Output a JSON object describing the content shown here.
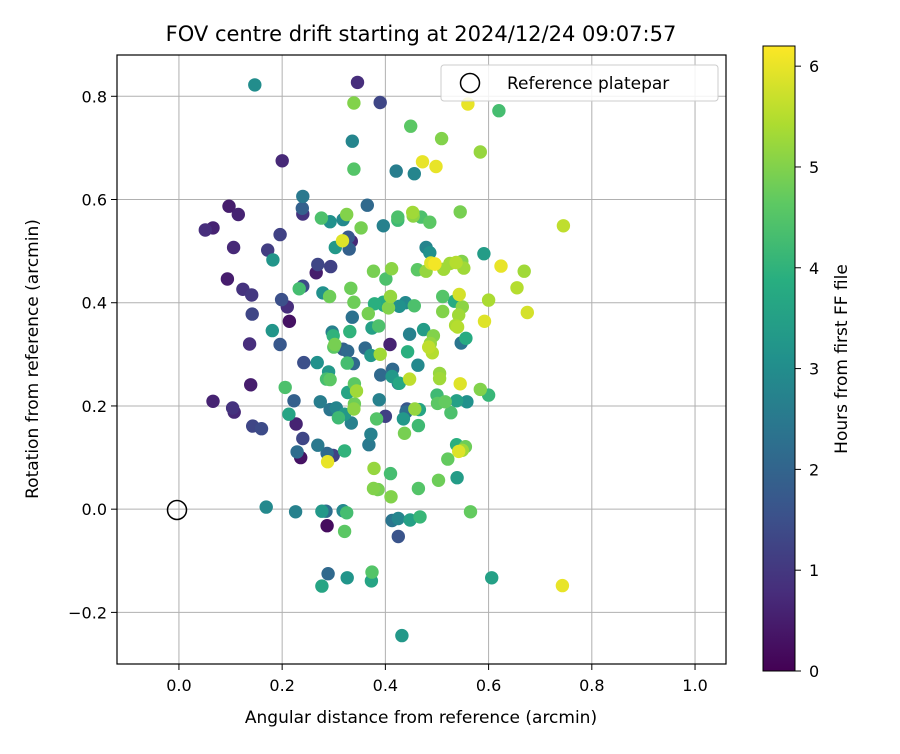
{
  "chart_data": {
    "type": "scatter",
    "title": "FOV centre drift starting at 2024/12/24 09:07:57",
    "xlabel": "Angular distance from reference (arcmin)",
    "ylabel": "Rotation from reference (arcmin)",
    "xlim": [
      -0.12,
      1.06
    ],
    "ylim": [
      -0.3,
      0.88
    ],
    "xticks": [
      0.0,
      0.2,
      0.4,
      0.6,
      0.8,
      1.0
    ],
    "xtick_labels": [
      "0.0",
      "0.2",
      "0.4",
      "0.6",
      "0.8",
      "1.0"
    ],
    "yticks": [
      -0.2,
      0.0,
      0.2,
      0.4,
      0.6,
      0.8
    ],
    "ytick_labels": [
      "−0.2",
      "0.0",
      "0.2",
      "0.4",
      "0.6",
      "0.8"
    ],
    "grid": true,
    "legend": {
      "position": "top-right",
      "entries": [
        {
          "label": "Reference platepar",
          "marker": "open-circle"
        }
      ]
    },
    "reference_point": {
      "x": 0.0,
      "y": 0.0,
      "label": "Reference platepar"
    },
    "colorbar": {
      "label": "Hours from first FF file",
      "colormap": "viridis",
      "range": [
        0,
        6.2
      ],
      "ticks": [
        0,
        1,
        2,
        3,
        4,
        5,
        6
      ],
      "tick_labels": [
        "0",
        "1",
        "2",
        "3",
        "4",
        "5",
        "6"
      ]
    },
    "points": [
      [
        0.051,
        0.541,
        0.8
      ],
      [
        0.066,
        0.545,
        0.6
      ],
      [
        0.097,
        0.587,
        0.5
      ],
      [
        0.106,
        0.507,
        0.7
      ],
      [
        0.115,
        0.571,
        0.6
      ],
      [
        0.094,
        0.446,
        0.5
      ],
      [
        0.124,
        0.426,
        0.9
      ],
      [
        0.141,
        0.415,
        1.0
      ],
      [
        0.142,
        0.378,
        1.3
      ],
      [
        0.137,
        0.32,
        0.8
      ],
      [
        0.066,
        0.209,
        0.6
      ],
      [
        0.104,
        0.196,
        0.9
      ],
      [
        0.107,
        0.188,
        0.7
      ],
      [
        0.139,
        0.241,
        0.5
      ],
      [
        0.143,
        0.161,
        1.3
      ],
      [
        0.16,
        0.156,
        1.4
      ],
      [
        0.147,
        0.822,
        3.0
      ],
      [
        0.172,
        0.502,
        1.1
      ],
      [
        0.182,
        0.483,
        3.2
      ],
      [
        0.196,
        0.532,
        1.2
      ],
      [
        0.2,
        0.675,
        0.7
      ],
      [
        0.199,
        0.406,
        1.5
      ],
      [
        0.196,
        0.319,
        1.7
      ],
      [
        0.181,
        0.346,
        3.2
      ],
      [
        0.21,
        0.392,
        0.8
      ],
      [
        0.214,
        0.364,
        0.3
      ],
      [
        0.206,
        0.236,
        4.4
      ],
      [
        0.213,
        0.184,
        3.6
      ],
      [
        0.223,
        0.21,
        1.9
      ],
      [
        0.227,
        0.165,
        0.6
      ],
      [
        0.229,
        0.111,
        2.2
      ],
      [
        0.24,
        0.137,
        1.3
      ],
      [
        0.236,
        0.1,
        0.3
      ],
      [
        0.226,
        -0.005,
        2.7
      ],
      [
        0.169,
        0.004,
        2.9
      ],
      [
        0.24,
        0.606,
        2.5
      ],
      [
        0.239,
        0.583,
        1.9
      ],
      [
        0.24,
        0.572,
        0.9
      ],
      [
        0.233,
        0.427,
        4.3
      ],
      [
        0.24,
        0.432,
        1.4
      ],
      [
        0.242,
        0.284,
        1.5
      ],
      [
        0.266,
        0.458,
        0.5
      ],
      [
        0.269,
        0.474,
        1.3
      ],
      [
        0.276,
        0.564,
        4.4
      ],
      [
        0.279,
        0.419,
        3.1
      ],
      [
        0.292,
        0.412,
        4.8
      ],
      [
        0.294,
        0.47,
        1.2
      ],
      [
        0.293,
        0.557,
        3.1
      ],
      [
        0.268,
        0.284,
        3.1
      ],
      [
        0.286,
        0.252,
        4.3
      ],
      [
        0.29,
        0.266,
        3.3
      ],
      [
        0.293,
        0.251,
        4.6
      ],
      [
        0.297,
        0.343,
        2.7
      ],
      [
        0.299,
        0.336,
        4.0
      ],
      [
        0.3,
        0.314,
        4.6
      ],
      [
        0.274,
        0.208,
        2.6
      ],
      [
        0.293,
        0.193,
        2.4
      ],
      [
        0.269,
        0.124,
        2.5
      ],
      [
        0.287,
        0.108,
        2.1
      ],
      [
        0.299,
        0.104,
        1.2
      ],
      [
        0.288,
        0.092,
        6.0
      ],
      [
        0.277,
        -0.004,
        3.3
      ],
      [
        0.285,
        -0.004,
        2.2
      ],
      [
        0.287,
        -0.032,
        0.2
      ],
      [
        0.289,
        -0.125,
        2.1
      ],
      [
        0.277,
        -0.149,
        3.6
      ],
      [
        0.303,
        0.507,
        3.3
      ],
      [
        0.318,
        0.561,
        2.9
      ],
      [
        0.317,
        0.52,
        5.9
      ],
      [
        0.325,
        0.571,
        5.0
      ],
      [
        0.328,
        0.527,
        1.7
      ],
      [
        0.33,
        0.504,
        1.9
      ],
      [
        0.334,
        0.519,
        0.7
      ],
      [
        0.333,
        0.428,
        4.8
      ],
      [
        0.339,
        0.401,
        4.8
      ],
      [
        0.331,
        0.344,
        4.0
      ],
      [
        0.336,
        0.372,
        2.3
      ],
      [
        0.318,
        0.31,
        1.9
      ],
      [
        0.327,
        0.306,
        2.1
      ],
      [
        0.326,
        0.283,
        4.3
      ],
      [
        0.302,
        0.319,
        4.9
      ],
      [
        0.305,
        0.196,
        2.8
      ],
      [
        0.309,
        0.177,
        4.2
      ],
      [
        0.321,
        0.184,
        3.3
      ],
      [
        0.327,
        0.226,
        3.6
      ],
      [
        0.334,
        0.167,
        2.7
      ],
      [
        0.339,
        0.194,
        5.1
      ],
      [
        0.34,
        0.204,
        4.8
      ],
      [
        0.338,
        0.282,
        2.1
      ],
      [
        0.321,
        0.113,
        4.0
      ],
      [
        0.318,
        -0.003,
        2.9
      ],
      [
        0.325,
        -0.007,
        4.3
      ],
      [
        0.321,
        -0.043,
        4.6
      ],
      [
        0.326,
        -0.133,
        3.2
      ],
      [
        0.34,
        0.243,
        4.6
      ],
      [
        0.339,
        0.787,
        5.0
      ],
      [
        0.336,
        0.713,
        2.8
      ],
      [
        0.339,
        0.659,
        4.5
      ],
      [
        0.346,
        0.827,
        0.8
      ],
      [
        0.353,
        0.545,
        4.9
      ],
      [
        0.365,
        0.589,
        2.1
      ],
      [
        0.367,
        0.379,
        4.9
      ],
      [
        0.344,
        0.229,
        5.3
      ],
      [
        0.361,
        0.312,
        2.1
      ],
      [
        0.372,
        0.298,
        3.3
      ],
      [
        0.374,
        0.351,
        3.5
      ],
      [
        0.377,
        0.461,
        4.9
      ],
      [
        0.379,
        0.398,
        3.9
      ],
      [
        0.372,
        0.145,
        2.7
      ],
      [
        0.368,
        0.125,
        2.5
      ],
      [
        0.374,
        -0.122,
        4.5
      ],
      [
        0.373,
        -0.139,
        3.6
      ],
      [
        0.377,
        0.04,
        5.0
      ],
      [
        0.386,
        0.038,
        4.9
      ],
      [
        0.39,
        0.788,
        1.3
      ],
      [
        0.387,
        0.355,
        4.4
      ],
      [
        0.391,
        0.26,
        2.1
      ],
      [
        0.39,
        0.3,
        5.3
      ],
      [
        0.397,
        0.395,
        3.7
      ],
      [
        0.396,
        0.401,
        3.8
      ],
      [
        0.388,
        0.212,
        2.7
      ],
      [
        0.383,
        0.175,
        4.5
      ],
      [
        0.378,
        0.079,
        5.2
      ],
      [
        0.396,
        0.549,
        2.7
      ],
      [
        0.4,
        0.18,
        1.2
      ],
      [
        0.401,
        0.446,
        4.4
      ],
      [
        0.406,
        0.39,
        5.0
      ],
      [
        0.41,
        0.412,
        5.2
      ],
      [
        0.409,
        0.319,
        0.6
      ],
      [
        0.412,
        0.466,
        5.1
      ],
      [
        0.413,
        0.257,
        3.3
      ],
      [
        0.414,
        0.271,
        2.1
      ],
      [
        0.41,
        0.069,
        4.3
      ],
      [
        0.411,
        0.024,
        5.0
      ],
      [
        0.413,
        -0.022,
        2.4
      ],
      [
        0.421,
        0.655,
        2.6
      ],
      [
        0.424,
        0.566,
        4.4
      ],
      [
        0.424,
        0.56,
        4.2
      ],
      [
        0.425,
        0.244,
        2.5
      ],
      [
        0.427,
        0.244,
        3.7
      ],
      [
        0.427,
        0.393,
        3.1
      ],
      [
        0.425,
        -0.053,
        1.6
      ],
      [
        0.425,
        -0.018,
        2.8
      ],
      [
        0.432,
        -0.245,
        3.3
      ],
      [
        0.435,
        0.175,
        3.3
      ],
      [
        0.437,
        0.147,
        4.9
      ],
      [
        0.439,
        0.4,
        2.9
      ],
      [
        0.44,
        0.188,
        2.2
      ],
      [
        0.442,
        0.194,
        1.7
      ],
      [
        0.443,
        0.305,
        3.9
      ],
      [
        0.447,
        0.252,
        5.6
      ],
      [
        0.447,
        0.339,
        2.7
      ],
      [
        0.449,
        0.742,
        4.6
      ],
      [
        0.448,
        -0.021,
        3.5
      ],
      [
        0.453,
        0.575,
        5.3
      ],
      [
        0.454,
        0.568,
        5.1
      ],
      [
        0.456,
        0.65,
        2.8
      ],
      [
        0.456,
        0.394,
        4.4
      ],
      [
        0.457,
        0.194,
        5.2
      ],
      [
        0.462,
        0.464,
        4.6
      ],
      [
        0.463,
        0.279,
        2.9
      ],
      [
        0.464,
        0.162,
        4.2
      ],
      [
        0.464,
        0.04,
        4.5
      ],
      [
        0.466,
        0.193,
        3.6
      ],
      [
        0.467,
        -0.015,
        4.1
      ],
      [
        0.469,
        0.566,
        4.4
      ],
      [
        0.474,
        0.348,
        3.4
      ],
      [
        0.479,
        0.507,
        2.8
      ],
      [
        0.479,
        0.461,
        5.2
      ],
      [
        0.484,
        0.314,
        5.6
      ],
      [
        0.486,
        0.556,
        4.6
      ],
      [
        0.486,
        0.497,
        3.1
      ],
      [
        0.487,
        0.321,
        5.2
      ],
      [
        0.488,
        0.477,
        5.9
      ],
      [
        0.491,
        0.303,
        5.5
      ],
      [
        0.493,
        0.336,
        5.0
      ],
      [
        0.496,
        0.475,
        6.0
      ],
      [
        0.496,
        0.475,
        6.1
      ],
      [
        0.472,
        0.673,
        6.0
      ],
      [
        0.498,
        0.664,
        6.0
      ],
      [
        0.5,
        0.221,
        4.2
      ],
      [
        0.501,
        0.205,
        4.6
      ],
      [
        0.503,
        0.056,
        4.8
      ],
      [
        0.505,
        0.263,
        5.2
      ],
      [
        0.505,
        0.253,
        5.3
      ],
      [
        0.509,
        0.718,
        5.0
      ],
      [
        0.511,
        0.412,
        4.5
      ],
      [
        0.511,
        0.383,
        5.0
      ],
      [
        0.513,
        0.465,
        5.3
      ],
      [
        0.516,
        0.208,
        4.7
      ],
      [
        0.521,
        0.097,
        4.7
      ],
      [
        0.525,
        0.476,
        5.3
      ],
      [
        0.527,
        0.187,
        4.4
      ],
      [
        0.534,
        0.403,
        3.8
      ],
      [
        0.536,
        0.356,
        5.4
      ],
      [
        0.537,
        0.478,
        5.5
      ],
      [
        0.538,
        0.125,
        3.9
      ],
      [
        0.538,
        0.21,
        3.5
      ],
      [
        0.539,
        0.061,
        3.4
      ],
      [
        0.54,
        0.353,
        5.5
      ],
      [
        0.542,
        0.376,
        5.3
      ],
      [
        0.542,
        0.112,
        5.9
      ],
      [
        0.543,
        0.416,
        5.8
      ],
      [
        0.545,
        0.243,
        5.9
      ],
      [
        0.545,
        0.576,
        4.9
      ],
      [
        0.547,
        0.322,
        2.4
      ],
      [
        0.548,
        0.48,
        5.0
      ],
      [
        0.549,
        0.392,
        5.1
      ],
      [
        0.549,
        0.114,
        5.3
      ],
      [
        0.552,
        0.467,
        5.3
      ],
      [
        0.555,
        0.121,
        4.8
      ],
      [
        0.556,
        0.331,
        3.8
      ],
      [
        0.558,
        0.208,
        3.1
      ],
      [
        0.56,
        0.785,
        6.0
      ],
      [
        0.565,
        -0.005,
        4.7
      ],
      [
        0.584,
        0.692,
        5.2
      ],
      [
        0.584,
        0.232,
        5.0
      ],
      [
        0.592,
        0.364,
        5.9
      ],
      [
        0.591,
        0.495,
        3.4
      ],
      [
        0.6,
        0.405,
        5.4
      ],
      [
        0.6,
        0.221,
        4.1
      ],
      [
        0.606,
        -0.133,
        3.5
      ],
      [
        0.62,
        0.772,
        4.3
      ],
      [
        0.624,
        0.471,
        6.0
      ],
      [
        0.655,
        0.429,
        5.5
      ],
      [
        0.669,
        0.461,
        5.3
      ],
      [
        0.675,
        0.381,
        5.8
      ],
      [
        0.745,
        0.549,
        5.6
      ],
      [
        0.743,
        -0.148,
        6.0
      ]
    ]
  }
}
